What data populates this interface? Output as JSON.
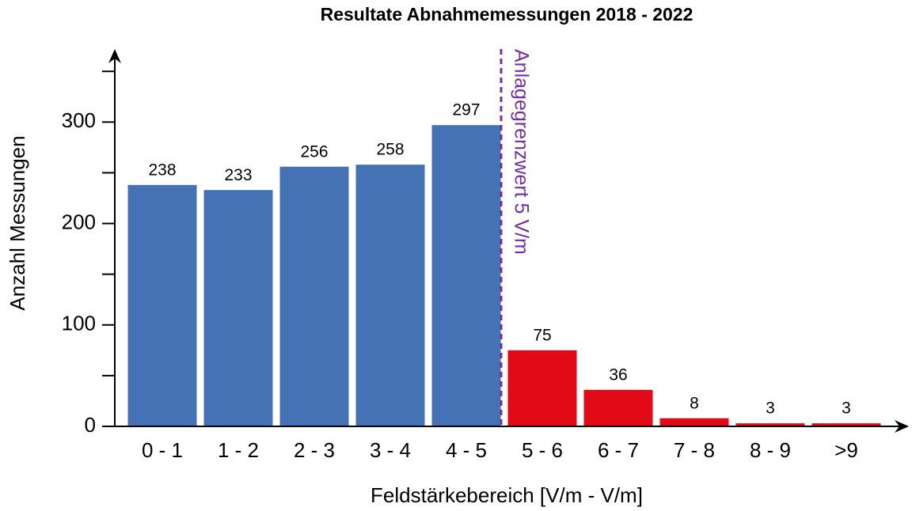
{
  "chart_data": {
    "type": "bar",
    "title": "Resultate Abnahmemessungen 2018 - 2022",
    "x_label": "Feldstärkebereich [V/m - V/m]",
    "y_label": "Anzahl Messungen",
    "categories": [
      "0 - 1",
      "1 - 2",
      "2 - 3",
      "3 - 4",
      "4 - 5",
      "5 - 6",
      "6 - 7",
      "7 - 8",
      "8 - 9",
      ">9"
    ],
    "values": [
      238,
      233,
      256,
      258,
      297,
      75,
      36,
      8,
      3,
      3
    ],
    "colors": [
      "#4472b4",
      "#4472b4",
      "#4472b4",
      "#4472b4",
      "#4472b4",
      "#e20a17",
      "#e20a17",
      "#e20a17",
      "#e20a17",
      "#e20a17"
    ],
    "ylim": [
      0,
      372
    ],
    "yticks": [
      0,
      100,
      200,
      300
    ],
    "minor_yticks": [
      50,
      150,
      250,
      350
    ],
    "threshold": {
      "label": "Anlagegrenzwert 5 V/m",
      "color": "#7030a0"
    },
    "grid": false
  }
}
